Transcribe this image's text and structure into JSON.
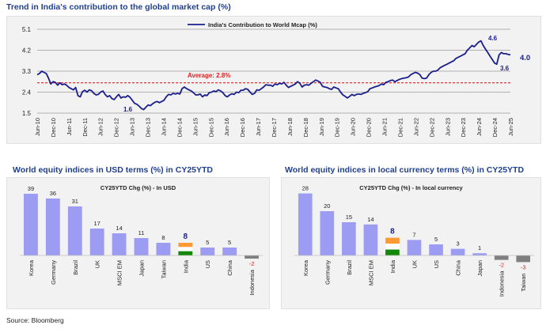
{
  "colors": {
    "title": "#1f3f8f",
    "line": "#1a1f8c",
    "average": "#e02020",
    "bar": "#9b9cf2",
    "bar_negative": "#7f7f7f",
    "india_flag": [
      "#ff9933",
      "#ffffff",
      "#138808"
    ],
    "negative_label": "#e02020",
    "panel": "#f2f2f2"
  },
  "source": "Source: Bloomberg",
  "chart_data": [
    {
      "type": "line",
      "title": "Trend in India's contribution to the global market cap (%)",
      "series": [
        {
          "name": "India's Contribution to World Mcap (%)",
          "x_start": "Jun-10",
          "x_end": "Jun-25",
          "frequency": "fortnightly",
          "values": [
            3.15,
            3.2,
            3.3,
            3.25,
            3.2,
            3.0,
            2.75,
            2.85,
            2.82,
            2.7,
            2.8,
            2.72,
            2.75,
            2.7,
            2.6,
            2.55,
            2.5,
            2.6,
            2.25,
            2.2,
            2.42,
            2.48,
            2.4,
            2.5,
            2.46,
            2.35,
            2.28,
            2.3,
            2.4,
            2.45,
            2.3,
            2.2,
            2.25,
            2.12,
            2.08,
            2.2,
            2.3,
            2.15,
            2.2,
            2.18,
            2.25,
            2.18,
            2.05,
            1.92,
            1.88,
            1.8,
            1.7,
            1.65,
            1.75,
            1.85,
            1.82,
            1.9,
            1.97,
            2.0,
            1.95,
            2.0,
            2.05,
            2.2,
            2.3,
            2.28,
            2.35,
            2.32,
            2.35,
            2.32,
            2.55,
            2.62,
            2.55,
            2.5,
            2.45,
            2.38,
            2.28,
            2.28,
            2.32,
            2.2,
            2.28,
            2.25,
            2.38,
            2.4,
            2.45,
            2.42,
            2.5,
            2.45,
            2.38,
            2.25,
            2.2,
            2.28,
            2.33,
            2.3,
            2.4,
            2.38,
            2.48,
            2.48,
            2.55,
            2.52,
            2.4,
            2.3,
            2.35,
            2.5,
            2.48,
            2.55,
            2.62,
            2.72,
            2.7,
            2.7,
            2.65,
            2.75,
            2.72,
            2.78,
            2.75,
            2.82,
            2.7,
            2.6,
            2.65,
            2.7,
            2.75,
            2.85,
            2.78,
            2.62,
            2.7,
            2.72,
            2.7,
            2.78,
            2.85,
            2.92,
            2.88,
            2.82,
            2.65,
            2.62,
            2.6,
            2.55,
            2.52,
            2.62,
            2.58,
            2.55,
            2.4,
            2.28,
            2.22,
            2.15,
            2.22,
            2.3,
            2.25,
            2.3,
            2.32,
            2.3,
            2.35,
            2.38,
            2.42,
            2.55,
            2.58,
            2.62,
            2.65,
            2.68,
            2.75,
            2.72,
            2.82,
            2.85,
            2.9,
            2.92,
            2.85,
            2.9,
            2.95,
            2.98,
            3.0,
            3.02,
            3.05,
            3.15,
            3.2,
            3.25,
            3.22,
            3.15,
            3.0,
            2.98,
            3.0,
            3.15,
            3.25,
            3.3,
            3.3,
            3.35,
            3.45,
            3.5,
            3.55,
            3.6,
            3.65,
            3.7,
            3.75,
            3.85,
            3.9,
            3.95,
            4.0,
            4.05,
            4.2,
            4.3,
            4.4,
            4.35,
            4.45,
            4.55,
            4.6,
            4.4,
            4.25,
            4.1,
            3.95,
            3.8,
            3.65,
            3.6,
            4.0,
            4.1,
            4.05,
            4.05,
            4.02,
            4.0
          ],
          "average": 2.8
        }
      ],
      "x_tick_labels": [
        "Jun-10",
        "Dec-10",
        "Jun-11",
        "Dec-11",
        "Jun-12",
        "Dec-12",
        "Jun-13",
        "Dec-13",
        "Jun-14",
        "Dec-14",
        "Jun-15",
        "Dec-15",
        "Jun-16",
        "Dec-16",
        "Jun-17",
        "Dec-17",
        "Jun-18",
        "Dec-18",
        "Jun-19",
        "Dec-19",
        "Jun-20",
        "Dec-20",
        "Jun-21",
        "Dec-21",
        "Jun-22",
        "Dec-22",
        "Jun-23",
        "Dec-23",
        "Jun-24",
        "Dec-24",
        "Jun-25"
      ],
      "y_ticks": [
        "1.5",
        "2.4",
        "3.3",
        "4.2",
        "5.1"
      ],
      "ylim": [
        1.5,
        5.1
      ],
      "gridlines": "horizontal",
      "legend_position": "top",
      "annotations": [
        {
          "text": "Average: 2.8%",
          "x": "Dec-13"
        },
        {
          "text": "1.6",
          "x": "Jun-13"
        },
        {
          "text": "4.6",
          "x": "Mar-24"
        },
        {
          "text": "3.6",
          "x": "Dec-24"
        },
        {
          "text": "4.0",
          "x": "Jun-25"
        }
      ]
    },
    {
      "type": "bar",
      "title": "World equity indices in USD terms (%) in CY25YTD",
      "legend": "CY25YTD Chg (%) - In USD",
      "categories": [
        "Korea",
        "Germany",
        "Brazil",
        "UK",
        "MSCI EM",
        "Japan",
        "Taiwan",
        "India",
        "US",
        "China",
        "Indonesia"
      ],
      "values": [
        39,
        36,
        31,
        17,
        14,
        11,
        8,
        8,
        5,
        5,
        -2
      ],
      "labels": [
        "39",
        "36",
        "31",
        "17",
        "14",
        "11",
        "8",
        "8",
        "5",
        "5",
        "-2"
      ],
      "highlight": "India",
      "ylim": [
        -5,
        42
      ]
    },
    {
      "type": "bar",
      "title": "World equity indices in local currency terms (%) in CY25YTD",
      "legend": "CY25YTD Chg (%) - In local currency",
      "categories": [
        "Korea",
        "Germany",
        "Brazil",
        "MSCI EM",
        "India",
        "UK",
        "US",
        "China",
        "Japan",
        "Indonesia",
        "Taiwan"
      ],
      "values": [
        28,
        20,
        15,
        14,
        8,
        7,
        5,
        3,
        1,
        -2,
        -3
      ],
      "labels": [
        "28",
        "20",
        "15",
        "14",
        "8",
        "7",
        "5",
        "3",
        "1",
        "-2",
        "-3"
      ],
      "highlight": "India",
      "ylim": [
        -5,
        30
      ]
    }
  ]
}
